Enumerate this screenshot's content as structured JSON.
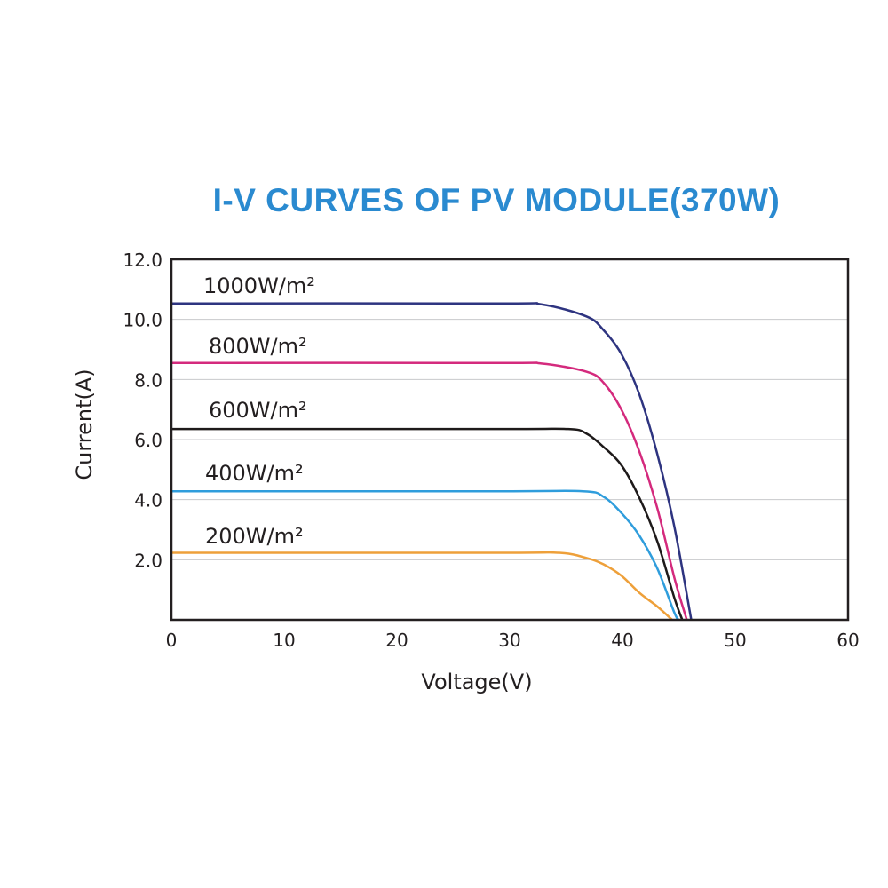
{
  "chart_data": {
    "type": "line",
    "title": "I-V CURVES OF PV MODULE(370W)",
    "xlabel": "Voltage(V)",
    "ylabel": "Current(A)",
    "xlim": [
      0,
      60
    ],
    "ylim": [
      0,
      12
    ],
    "x_ticks": [
      "0",
      "10",
      "20",
      "30",
      "40",
      "50",
      "60"
    ],
    "y_ticks": [
      "2.0",
      "4.0",
      "6.0",
      "8.0",
      "10.0",
      "12.0"
    ],
    "grid": "horizontal",
    "colors": {
      "title": "#2a8ad0",
      "grid": "#c8cacc",
      "frame": "#231f20"
    },
    "series": [
      {
        "name": "1000W/m²",
        "color": "#2e3480",
        "points": [
          [
            0,
            10.53
          ],
          [
            28.9,
            10.53
          ],
          [
            32.8,
            10.5
          ],
          [
            36.8,
            10.1
          ],
          [
            38.3,
            9.65
          ],
          [
            39.9,
            8.85
          ],
          [
            41.5,
            7.5
          ],
          [
            43.1,
            5.5
          ],
          [
            44.6,
            3.1
          ],
          [
            46.1,
            0
          ]
        ]
      },
      {
        "name": "800W/m²",
        "color": "#d42a7d",
        "points": [
          [
            0,
            8.55
          ],
          [
            28.9,
            8.55
          ],
          [
            32.8,
            8.53
          ],
          [
            36.8,
            8.26
          ],
          [
            38.3,
            7.9
          ],
          [
            39.9,
            7.0
          ],
          [
            41.5,
            5.6
          ],
          [
            43.1,
            3.7
          ],
          [
            44.6,
            1.4
          ],
          [
            45.7,
            0
          ]
        ]
      },
      {
        "name": "600W/m²",
        "color": "#1e1a1a",
        "points": [
          [
            0,
            6.35
          ],
          [
            28.9,
            6.35
          ],
          [
            35.2,
            6.35
          ],
          [
            36.8,
            6.2
          ],
          [
            38.3,
            5.76
          ],
          [
            39.9,
            5.15
          ],
          [
            41.5,
            4.06
          ],
          [
            43.1,
            2.6
          ],
          [
            44.6,
            0.73
          ],
          [
            45.3,
            0
          ]
        ]
      },
      {
        "name": "400W/m²",
        "color": "#2f9ddc",
        "points": [
          [
            0,
            4.28
          ],
          [
            28.9,
            4.28
          ],
          [
            36.5,
            4.28
          ],
          [
            38.3,
            4.1
          ],
          [
            39.9,
            3.56
          ],
          [
            41.5,
            2.8
          ],
          [
            43.1,
            1.7
          ],
          [
            44.6,
            0.24
          ],
          [
            45.0,
            0
          ]
        ]
      },
      {
        "name": "200W/m²",
        "color": "#eea03a",
        "points": [
          [
            0,
            2.23
          ],
          [
            28.9,
            2.23
          ],
          [
            34.4,
            2.23
          ],
          [
            36.8,
            2.06
          ],
          [
            38.3,
            1.85
          ],
          [
            39.9,
            1.47
          ],
          [
            41.5,
            0.9
          ],
          [
            43.1,
            0.44
          ],
          [
            44.4,
            0
          ]
        ]
      }
    ]
  }
}
